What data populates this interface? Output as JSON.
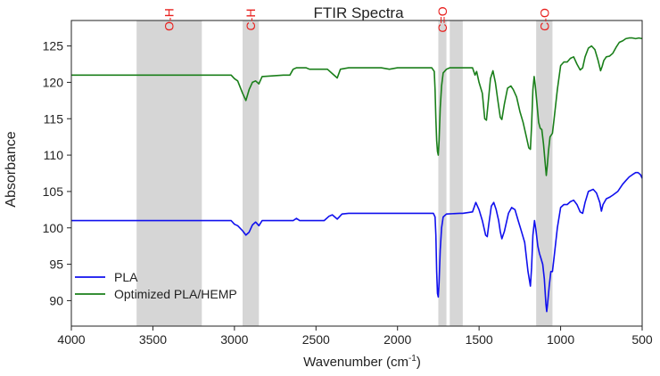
{
  "chart_data": {
    "type": "line",
    "title": "FTIR Spectra",
    "xlabel_main": "Wavenumber (cm",
    "xlabel_sup": "-1",
    "xlabel_end": ")",
    "ylabel": "Absorbance",
    "xlim": [
      4000,
      500
    ],
    "x_reversed": true,
    "ylim": [
      86.5,
      128.5
    ],
    "x_ticks": [
      4000,
      3500,
      3000,
      2500,
      2000,
      1500,
      1000,
      500
    ],
    "y_ticks": [
      90,
      95,
      100,
      105,
      110,
      115,
      120,
      125
    ],
    "grid": false,
    "legend_position": "bottom-left",
    "bands": [
      {
        "label": "O-H",
        "from": 3600,
        "to": 3200
      },
      {
        "label": "C-H",
        "from": 2950,
        "to": 2850
      },
      {
        "label": "C=O",
        "from": 1750,
        "to": 1700
      },
      {
        "label": "",
        "from": 1680,
        "to": 1600
      },
      {
        "label": "C-O",
        "from": 1150,
        "to": 1050
      }
    ],
    "band_color": "#d6d6d6",
    "band_label_color": "#e8201e",
    "series": [
      {
        "name": "PLA",
        "color": "#1010ee",
        "points": [
          [
            4000,
            101
          ],
          [
            3100,
            101
          ],
          [
            3020,
            101
          ],
          [
            3000,
            100.5
          ],
          [
            2980,
            100.3
          ],
          [
            2950,
            99.6
          ],
          [
            2930,
            99
          ],
          [
            2910,
            99.4
          ],
          [
            2890,
            100.4
          ],
          [
            2870,
            100.8
          ],
          [
            2850,
            100.3
          ],
          [
            2830,
            101
          ],
          [
            2700,
            101
          ],
          [
            2640,
            101
          ],
          [
            2620,
            101.3
          ],
          [
            2600,
            101
          ],
          [
            2450,
            101
          ],
          [
            2420,
            101.6
          ],
          [
            2400,
            101.8
          ],
          [
            2370,
            101.2
          ],
          [
            2340,
            101.9
          ],
          [
            2300,
            102
          ],
          [
            2000,
            102
          ],
          [
            1780,
            102
          ],
          [
            1770,
            101.5
          ],
          [
            1765,
            99
          ],
          [
            1760,
            94
          ],
          [
            1755,
            91
          ],
          [
            1750,
            90.5
          ],
          [
            1745,
            92.5
          ],
          [
            1738,
            97
          ],
          [
            1730,
            100
          ],
          [
            1720,
            101.5
          ],
          [
            1700,
            101.9
          ],
          [
            1620,
            102
          ],
          [
            1600,
            102
          ],
          [
            1540,
            102.2
          ],
          [
            1520,
            103.5
          ],
          [
            1500,
            102.5
          ],
          [
            1480,
            101
          ],
          [
            1460,
            99
          ],
          [
            1450,
            98.8
          ],
          [
            1440,
            100.5
          ],
          [
            1425,
            103
          ],
          [
            1410,
            103.5
          ],
          [
            1395,
            102.5
          ],
          [
            1380,
            101
          ],
          [
            1370,
            99.5
          ],
          [
            1360,
            98.5
          ],
          [
            1345,
            99.5
          ],
          [
            1320,
            102
          ],
          [
            1300,
            102.8
          ],
          [
            1280,
            102.5
          ],
          [
            1260,
            101
          ],
          [
            1240,
            99.5
          ],
          [
            1220,
            98
          ],
          [
            1200,
            94
          ],
          [
            1185,
            92
          ],
          [
            1178,
            94.5
          ],
          [
            1170,
            99
          ],
          [
            1160,
            101
          ],
          [
            1150,
            99.5
          ],
          [
            1140,
            97.5
          ],
          [
            1130,
            96.5
          ],
          [
            1120,
            95.8
          ],
          [
            1110,
            95
          ],
          [
            1100,
            93
          ],
          [
            1090,
            89.5
          ],
          [
            1085,
            88.5
          ],
          [
            1080,
            89.5
          ],
          [
            1070,
            92
          ],
          [
            1060,
            94
          ],
          [
            1050,
            94
          ],
          [
            1040,
            96
          ],
          [
            1020,
            100
          ],
          [
            1000,
            102.8
          ],
          [
            980,
            103.2
          ],
          [
            960,
            103.2
          ],
          [
            940,
            103.6
          ],
          [
            920,
            103.8
          ],
          [
            900,
            103.2
          ],
          [
            880,
            102.2
          ],
          [
            865,
            102
          ],
          [
            850,
            103.5
          ],
          [
            830,
            105
          ],
          [
            800,
            105.3
          ],
          [
            780,
            104.8
          ],
          [
            760,
            103.5
          ],
          [
            750,
            102.3
          ],
          [
            740,
            103.2
          ],
          [
            720,
            104
          ],
          [
            700,
            104.2
          ],
          [
            680,
            104.5
          ],
          [
            650,
            105
          ],
          [
            620,
            106
          ],
          [
            600,
            106.5
          ],
          [
            580,
            107
          ],
          [
            560,
            107.3
          ],
          [
            540,
            107.6
          ],
          [
            525,
            107.6
          ],
          [
            510,
            107.3
          ],
          [
            500,
            106.8
          ]
        ]
      },
      {
        "name": "Optimized PLA/HEMP",
        "color": "#1a7f1a",
        "points": [
          [
            4000,
            121
          ],
          [
            3100,
            121
          ],
          [
            3020,
            121
          ],
          [
            3000,
            120.5
          ],
          [
            2980,
            120.2
          ],
          [
            2950,
            118.5
          ],
          [
            2930,
            117.5
          ],
          [
            2910,
            119
          ],
          [
            2890,
            120
          ],
          [
            2870,
            120.2
          ],
          [
            2850,
            119.8
          ],
          [
            2830,
            120.8
          ],
          [
            2700,
            121
          ],
          [
            2660,
            121
          ],
          [
            2640,
            121.8
          ],
          [
            2620,
            122
          ],
          [
            2560,
            122
          ],
          [
            2540,
            121.8
          ],
          [
            2470,
            121.8
          ],
          [
            2430,
            121.8
          ],
          [
            2400,
            121.2
          ],
          [
            2370,
            120.6
          ],
          [
            2350,
            121.8
          ],
          [
            2300,
            122
          ],
          [
            2100,
            122
          ],
          [
            2050,
            121.8
          ],
          [
            2000,
            122
          ],
          [
            1790,
            122
          ],
          [
            1775,
            121.5
          ],
          [
            1770,
            119
          ],
          [
            1765,
            115
          ],
          [
            1760,
            112
          ],
          [
            1755,
            110.5
          ],
          [
            1750,
            110
          ],
          [
            1745,
            112
          ],
          [
            1738,
            116.5
          ],
          [
            1730,
            119.5
          ],
          [
            1720,
            121.3
          ],
          [
            1700,
            121.8
          ],
          [
            1680,
            122
          ],
          [
            1600,
            122
          ],
          [
            1540,
            122
          ],
          [
            1525,
            121
          ],
          [
            1515,
            121.5
          ],
          [
            1500,
            120
          ],
          [
            1480,
            118.5
          ],
          [
            1465,
            115
          ],
          [
            1455,
            114.8
          ],
          [
            1445,
            117
          ],
          [
            1430,
            120.5
          ],
          [
            1415,
            121.6
          ],
          [
            1400,
            120
          ],
          [
            1385,
            117.5
          ],
          [
            1370,
            115.2
          ],
          [
            1360,
            114.9
          ],
          [
            1345,
            117
          ],
          [
            1325,
            119.2
          ],
          [
            1305,
            119.5
          ],
          [
            1290,
            119
          ],
          [
            1270,
            118
          ],
          [
            1250,
            116
          ],
          [
            1230,
            114.5
          ],
          [
            1210,
            112.5
          ],
          [
            1195,
            111
          ],
          [
            1185,
            110.8
          ],
          [
            1178,
            114
          ],
          [
            1170,
            119
          ],
          [
            1162,
            120.8
          ],
          [
            1155,
            119.5
          ],
          [
            1145,
            117
          ],
          [
            1135,
            114.5
          ],
          [
            1125,
            113.7
          ],
          [
            1115,
            113.5
          ],
          [
            1105,
            111.5
          ],
          [
            1095,
            109
          ],
          [
            1088,
            107.2
          ],
          [
            1082,
            108.5
          ],
          [
            1075,
            110.5
          ],
          [
            1065,
            112.5
          ],
          [
            1050,
            113
          ],
          [
            1040,
            115
          ],
          [
            1020,
            119
          ],
          [
            1000,
            122.3
          ],
          [
            980,
            122.8
          ],
          [
            960,
            122.8
          ],
          [
            940,
            123.3
          ],
          [
            920,
            123.5
          ],
          [
            900,
            122.5
          ],
          [
            880,
            121.7
          ],
          [
            865,
            122
          ],
          [
            850,
            123.5
          ],
          [
            830,
            124.7
          ],
          [
            810,
            125
          ],
          [
            790,
            124.5
          ],
          [
            770,
            123
          ],
          [
            755,
            121.6
          ],
          [
            745,
            122.2
          ],
          [
            735,
            123
          ],
          [
            720,
            123.5
          ],
          [
            700,
            123.6
          ],
          [
            680,
            124
          ],
          [
            660,
            124.8
          ],
          [
            640,
            125.5
          ],
          [
            620,
            125.7
          ],
          [
            600,
            126
          ],
          [
            580,
            126.1
          ],
          [
            560,
            126.1
          ],
          [
            540,
            126
          ],
          [
            520,
            126.1
          ],
          [
            500,
            126
          ]
        ]
      }
    ]
  }
}
